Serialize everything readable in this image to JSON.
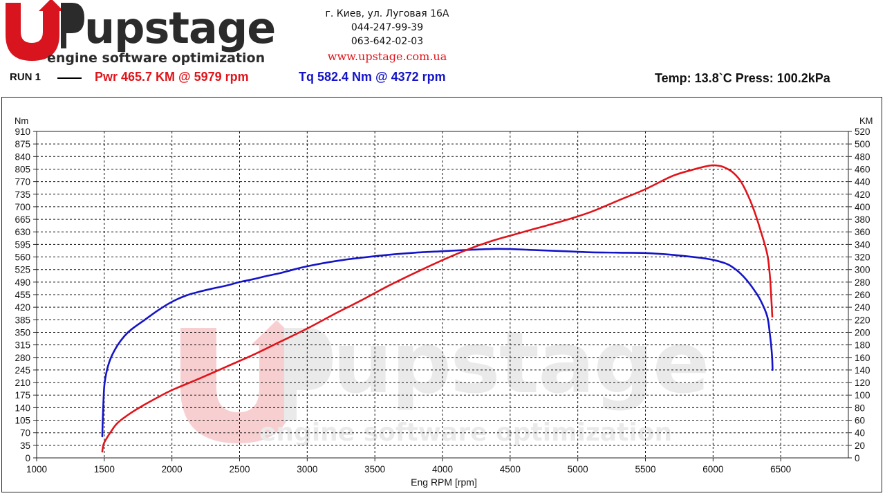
{
  "header": {
    "logo": {
      "brand": "upstage",
      "tagline": "engine software optimization"
    },
    "contacts": {
      "address": "г. Киев, ул. Луговая 16А",
      "phone1": "044-247-99-39",
      "phone2": "063-642-02-03",
      "website": "www.upstage.com.ua"
    },
    "run_label": "RUN 1",
    "power_summary": "Pwr  465.7 KM @ 5979 rpm",
    "torque_summary": "Tq 582.4 Nm @ 4372 rpm",
    "environment": "Temp: 13.8`C    Press: 100.2kPa"
  },
  "chart_data": {
    "type": "line",
    "xlabel": "Eng RPM [rpm]",
    "ylabel_left": "Nm",
    "ylabel_right": "KM",
    "xlim": [
      1000,
      7000
    ],
    "ylim_left": [
      0,
      910
    ],
    "ylim_right": [
      0,
      520
    ],
    "x_ticks": [
      1000,
      1500,
      2000,
      2500,
      3000,
      3500,
      4000,
      4500,
      5000,
      5500,
      6000,
      6500
    ],
    "y_left_ticks": [
      0,
      35,
      70,
      105,
      140,
      175,
      210,
      245,
      280,
      315,
      350,
      385,
      420,
      455,
      490,
      525,
      560,
      595,
      630,
      665,
      700,
      735,
      770,
      805,
      840,
      875,
      910
    ],
    "y_right_ticks": [
      0,
      20,
      40,
      60,
      80,
      100,
      120,
      140,
      160,
      180,
      200,
      220,
      240,
      260,
      280,
      300,
      320,
      340,
      360,
      380,
      400,
      420,
      440,
      460,
      480,
      500,
      520
    ],
    "grid": true,
    "colors": {
      "power": "#e0141a",
      "torque": "#1414c8"
    },
    "series": [
      {
        "name": "Tq",
        "axis": "left",
        "color": "#1414c8",
        "points": [
          [
            1485,
            60
          ],
          [
            1490,
            120
          ],
          [
            1500,
            200
          ],
          [
            1520,
            245
          ],
          [
            1550,
            280
          ],
          [
            1600,
            315
          ],
          [
            1650,
            340
          ],
          [
            1700,
            358
          ],
          [
            1800,
            385
          ],
          [
            1900,
            412
          ],
          [
            2000,
            435
          ],
          [
            2100,
            452
          ],
          [
            2200,
            463
          ],
          [
            2300,
            472
          ],
          [
            2400,
            480
          ],
          [
            2500,
            490
          ],
          [
            2600,
            498
          ],
          [
            2700,
            507
          ],
          [
            2800,
            515
          ],
          [
            2900,
            525
          ],
          [
            3000,
            534
          ],
          [
            3200,
            548
          ],
          [
            3400,
            558
          ],
          [
            3600,
            566
          ],
          [
            3800,
            572
          ],
          [
            4000,
            576
          ],
          [
            4200,
            580
          ],
          [
            4372,
            582.4
          ],
          [
            4500,
            582
          ],
          [
            4700,
            579
          ],
          [
            4900,
            576
          ],
          [
            5100,
            573
          ],
          [
            5300,
            572
          ],
          [
            5500,
            571
          ],
          [
            5700,
            566
          ],
          [
            5900,
            558
          ],
          [
            6000,
            552
          ],
          [
            6100,
            541
          ],
          [
            6150,
            530
          ],
          [
            6200,
            515
          ],
          [
            6250,
            495
          ],
          [
            6300,
            470
          ],
          [
            6350,
            440
          ],
          [
            6400,
            395
          ],
          [
            6420,
            345
          ],
          [
            6435,
            290
          ],
          [
            6440,
            245
          ]
        ]
      },
      {
        "name": "Pwr",
        "axis": "right",
        "color": "#e0141a",
        "points": [
          [
            1485,
            10
          ],
          [
            1495,
            22
          ],
          [
            1520,
            32
          ],
          [
            1550,
            42
          ],
          [
            1600,
            56
          ],
          [
            1700,
            72
          ],
          [
            1800,
            85
          ],
          [
            1900,
            97
          ],
          [
            2000,
            108
          ],
          [
            2200,
            126
          ],
          [
            2400,
            145
          ],
          [
            2600,
            164
          ],
          [
            2800,
            185
          ],
          [
            3000,
            206
          ],
          [
            3200,
            229
          ],
          [
            3400,
            251
          ],
          [
            3600,
            274
          ],
          [
            3800,
            295
          ],
          [
            4000,
            315
          ],
          [
            4200,
            333
          ],
          [
            4372,
            346
          ],
          [
            4500,
            354
          ],
          [
            4700,
            366
          ],
          [
            4900,
            378
          ],
          [
            5100,
            392
          ],
          [
            5300,
            410
          ],
          [
            5500,
            428
          ],
          [
            5700,
            449
          ],
          [
            5850,
            459
          ],
          [
            5979,
            465.7
          ],
          [
            6050,
            465
          ],
          [
            6100,
            461
          ],
          [
            6150,
            454
          ],
          [
            6200,
            442
          ],
          [
            6250,
            422
          ],
          [
            6300,
            396
          ],
          [
            6350,
            363
          ],
          [
            6400,
            325
          ],
          [
            6420,
            290
          ],
          [
            6430,
            255
          ],
          [
            6438,
            225
          ]
        ]
      }
    ]
  }
}
